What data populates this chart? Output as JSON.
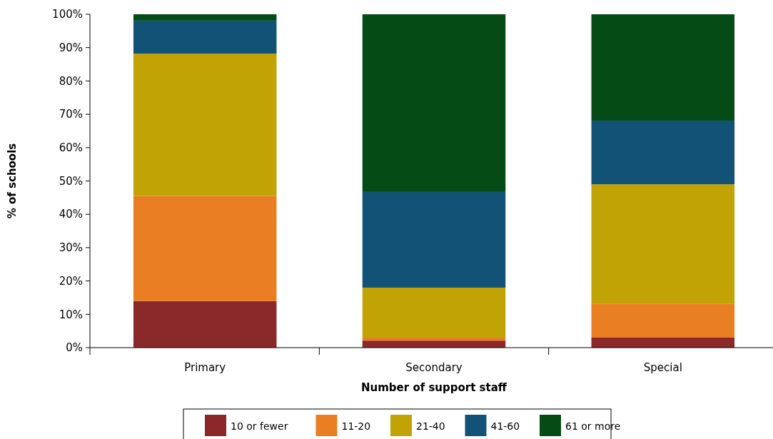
{
  "chart_data": {
    "type": "bar",
    "stacked": true,
    "xlabel": "Number of support staff",
    "ylabel": "% of schools",
    "categories": [
      "Primary",
      "Secondary",
      "Special"
    ],
    "series": [
      {
        "name": "10 or fewer",
        "color": "#8b2829",
        "values": [
          14,
          2.1,
          3
        ]
      },
      {
        "name": "11-20",
        "color": "#e97f22",
        "values": [
          31.5,
          0.9,
          10.1
        ]
      },
      {
        "name": "21-40",
        "color": "#c1a305",
        "values": [
          42.7,
          15,
          35.9
        ]
      },
      {
        "name": "41-60",
        "color": "#125277",
        "values": [
          9.9,
          28.7,
          19.1
        ]
      },
      {
        "name": "61 or more",
        "color": "#044b15",
        "values": [
          1.9,
          53.3,
          31.9
        ]
      }
    ],
    "ylim": [
      0,
      100
    ],
    "yticks": [
      {
        "value": 0,
        "label": "0%"
      },
      {
        "value": 10,
        "label": "10%"
      },
      {
        "value": 20,
        "label": "20%"
      },
      {
        "value": 30,
        "label": "30%"
      },
      {
        "value": 40,
        "label": "40%"
      },
      {
        "value": 50,
        "label": "50%"
      },
      {
        "value": 60,
        "label": "60%"
      },
      {
        "value": 70,
        "label": "70%"
      },
      {
        "value": 80,
        "label": "80%"
      },
      {
        "value": 90,
        "label": "90%"
      },
      {
        "value": 100,
        "label": "100%"
      }
    ],
    "grid": false,
    "legend": "bottom"
  }
}
